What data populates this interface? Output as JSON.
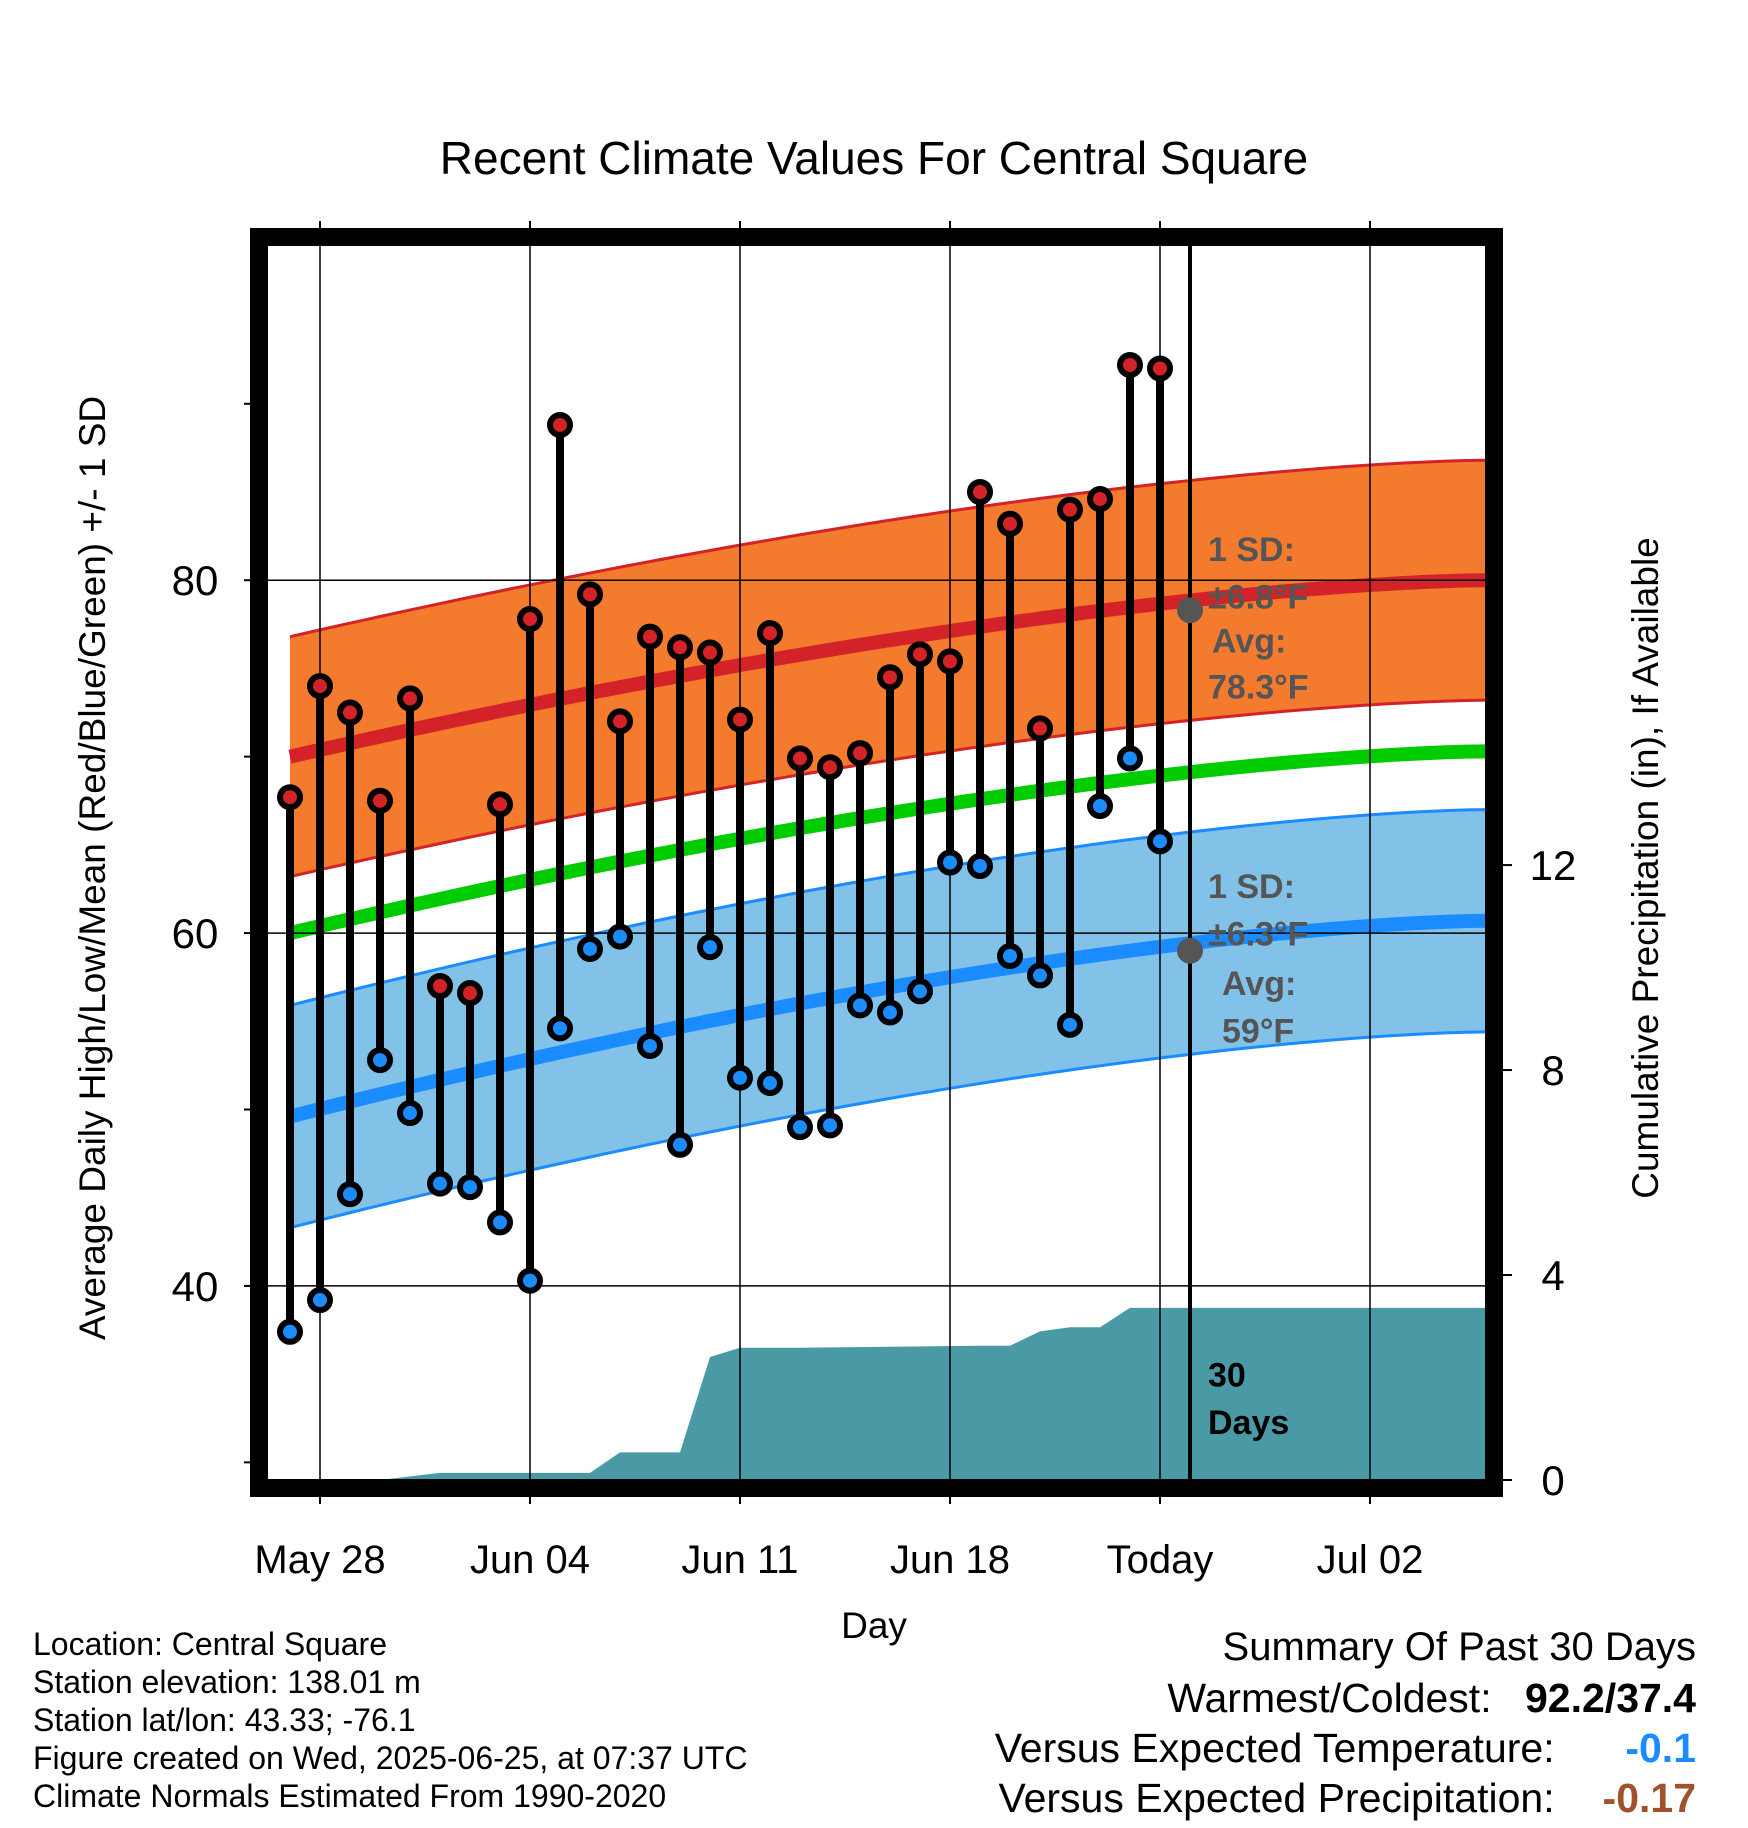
{
  "chart_data": {
    "type": "line",
    "title": "Recent Climate Values For Central Square",
    "xlabel": "Day",
    "ylabel": "Average Daily High/Low/Mean (Red/Blue/Green) +/- 1 SD",
    "y2label": "Cumulative Precipitation (in), If Available",
    "ylim": [
      29,
      99
    ],
    "y2lim": [
      0,
      24.1
    ],
    "yticks": [
      40,
      60,
      80
    ],
    "y2ticks": [
      0,
      4,
      8,
      12
    ],
    "xticks": [
      "May 28",
      "Jun 04",
      "Jun 11",
      "Jun 18",
      "Today",
      "Jul 02"
    ],
    "grid": true,
    "daily_high": [
      67.7,
      74.0,
      72.5,
      67.5,
      73.3,
      57.0,
      56.6,
      67.3,
      77.8,
      88.8,
      79.2,
      72.0,
      76.8,
      76.2,
      75.9,
      72.1,
      77.0,
      69.9,
      69.4,
      70.2,
      74.5,
      75.8,
      75.4,
      85.0,
      83.2,
      71.6,
      84.0,
      84.6,
      92.2,
      92.0
    ],
    "daily_low": [
      37.4,
      39.2,
      45.2,
      52.8,
      49.8,
      45.8,
      45.6,
      43.6,
      40.3,
      54.6,
      59.1,
      59.8,
      53.6,
      48.0,
      59.2,
      51.8,
      51.5,
      49.0,
      49.1,
      55.9,
      55.5,
      56.7,
      64.0,
      63.8,
      58.7,
      57.6,
      54.8,
      67.2,
      69.9,
      65.2
    ],
    "normal_high": {
      "start": 70.0,
      "end": 80.0,
      "sd": 6.8
    },
    "normal_low": {
      "start": 49.6,
      "end": 60.7,
      "sd": 6.3
    },
    "normal_mean": {
      "start": 60.0,
      "end": 70.3
    },
    "precip_cumulative": [
      [
        0,
        0
      ],
      [
        3,
        0
      ],
      [
        5,
        0.14
      ],
      [
        10,
        0.14
      ],
      [
        11,
        0.54
      ],
      [
        13,
        0.54
      ],
      [
        14,
        2.4
      ],
      [
        15,
        2.58
      ],
      [
        17,
        2.58
      ],
      [
        23,
        2.62
      ],
      [
        24,
        2.62
      ],
      [
        25,
        2.9
      ],
      [
        26,
        2.98
      ],
      [
        27,
        2.98
      ],
      [
        28,
        3.36
      ],
      [
        40.3,
        3.36
      ]
    ],
    "today_index": 30,
    "today_label": "30 Days",
    "annotations": {
      "high_sd": "1 SD: ±6.8°F",
      "high_avg_label": "Avg:",
      "high_avg_value": "78.3°F",
      "high_avg": 78.3,
      "low_sd": "1 SD: ±6.3°F",
      "low_avg_label": "Avg:",
      "low_avg_value": "59°F",
      "low_avg": 59
    },
    "colors": {
      "high_band": "#f47a2d",
      "high_line": "#d42328",
      "low_band": "#82c2e8",
      "low_line": "#1a8cff",
      "mean_line": "#00cc00",
      "precip": "#4a9aa5",
      "high_point": "#d42328",
      "low_point": "#1a8cff",
      "annotation": "#555555"
    }
  },
  "info": {
    "location": "Location: Central Square",
    "elevation": "Station elevation: 138.01 m",
    "latlon": "Station lat/lon: 43.33; -76.1",
    "created": "Figure created on Wed, 2025-06-25, at 07:37 UTC",
    "normals": "Climate Normals Estimated From 1990-2020"
  },
  "summary": {
    "heading": "Summary Of Past 30 Days",
    "warmest_coldest_label": "Warmest/Coldest:",
    "warmest_coldest_value": "92.2/37.4",
    "temp_label": "Versus Expected Temperature:",
    "temp_value": "-0.1",
    "temp_color": "#1a8cff",
    "precip_label": "Versus Expected Precipitation:",
    "precip_value": "-0.17",
    "precip_color": "#a0522d"
  }
}
